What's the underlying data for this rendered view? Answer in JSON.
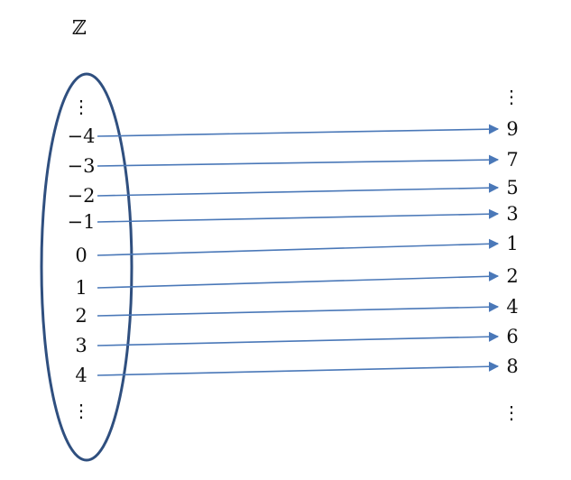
{
  "set_label": "ℤ",
  "left_ellipsis_top": "⋮",
  "left_ellipsis_bottom": "⋮",
  "right_ellipsis_top": "⋮",
  "right_ellipsis_bottom": "⋮",
  "mappings": [
    {
      "from": "−4",
      "to": "9"
    },
    {
      "from": "−3",
      "to": "7"
    },
    {
      "from": "−2",
      "to": "5"
    },
    {
      "from": "−1",
      "to": "3"
    },
    {
      "from": "0",
      "to": "1"
    },
    {
      "from": "1",
      "to": "2"
    },
    {
      "from": "2",
      "to": "4"
    },
    {
      "from": "3",
      "to": "6"
    },
    {
      "from": "4",
      "to": "8"
    }
  ],
  "colors": {
    "ellipse": "#2f4f7f",
    "arrow": "#4a78b8",
    "text": "#111111"
  }
}
